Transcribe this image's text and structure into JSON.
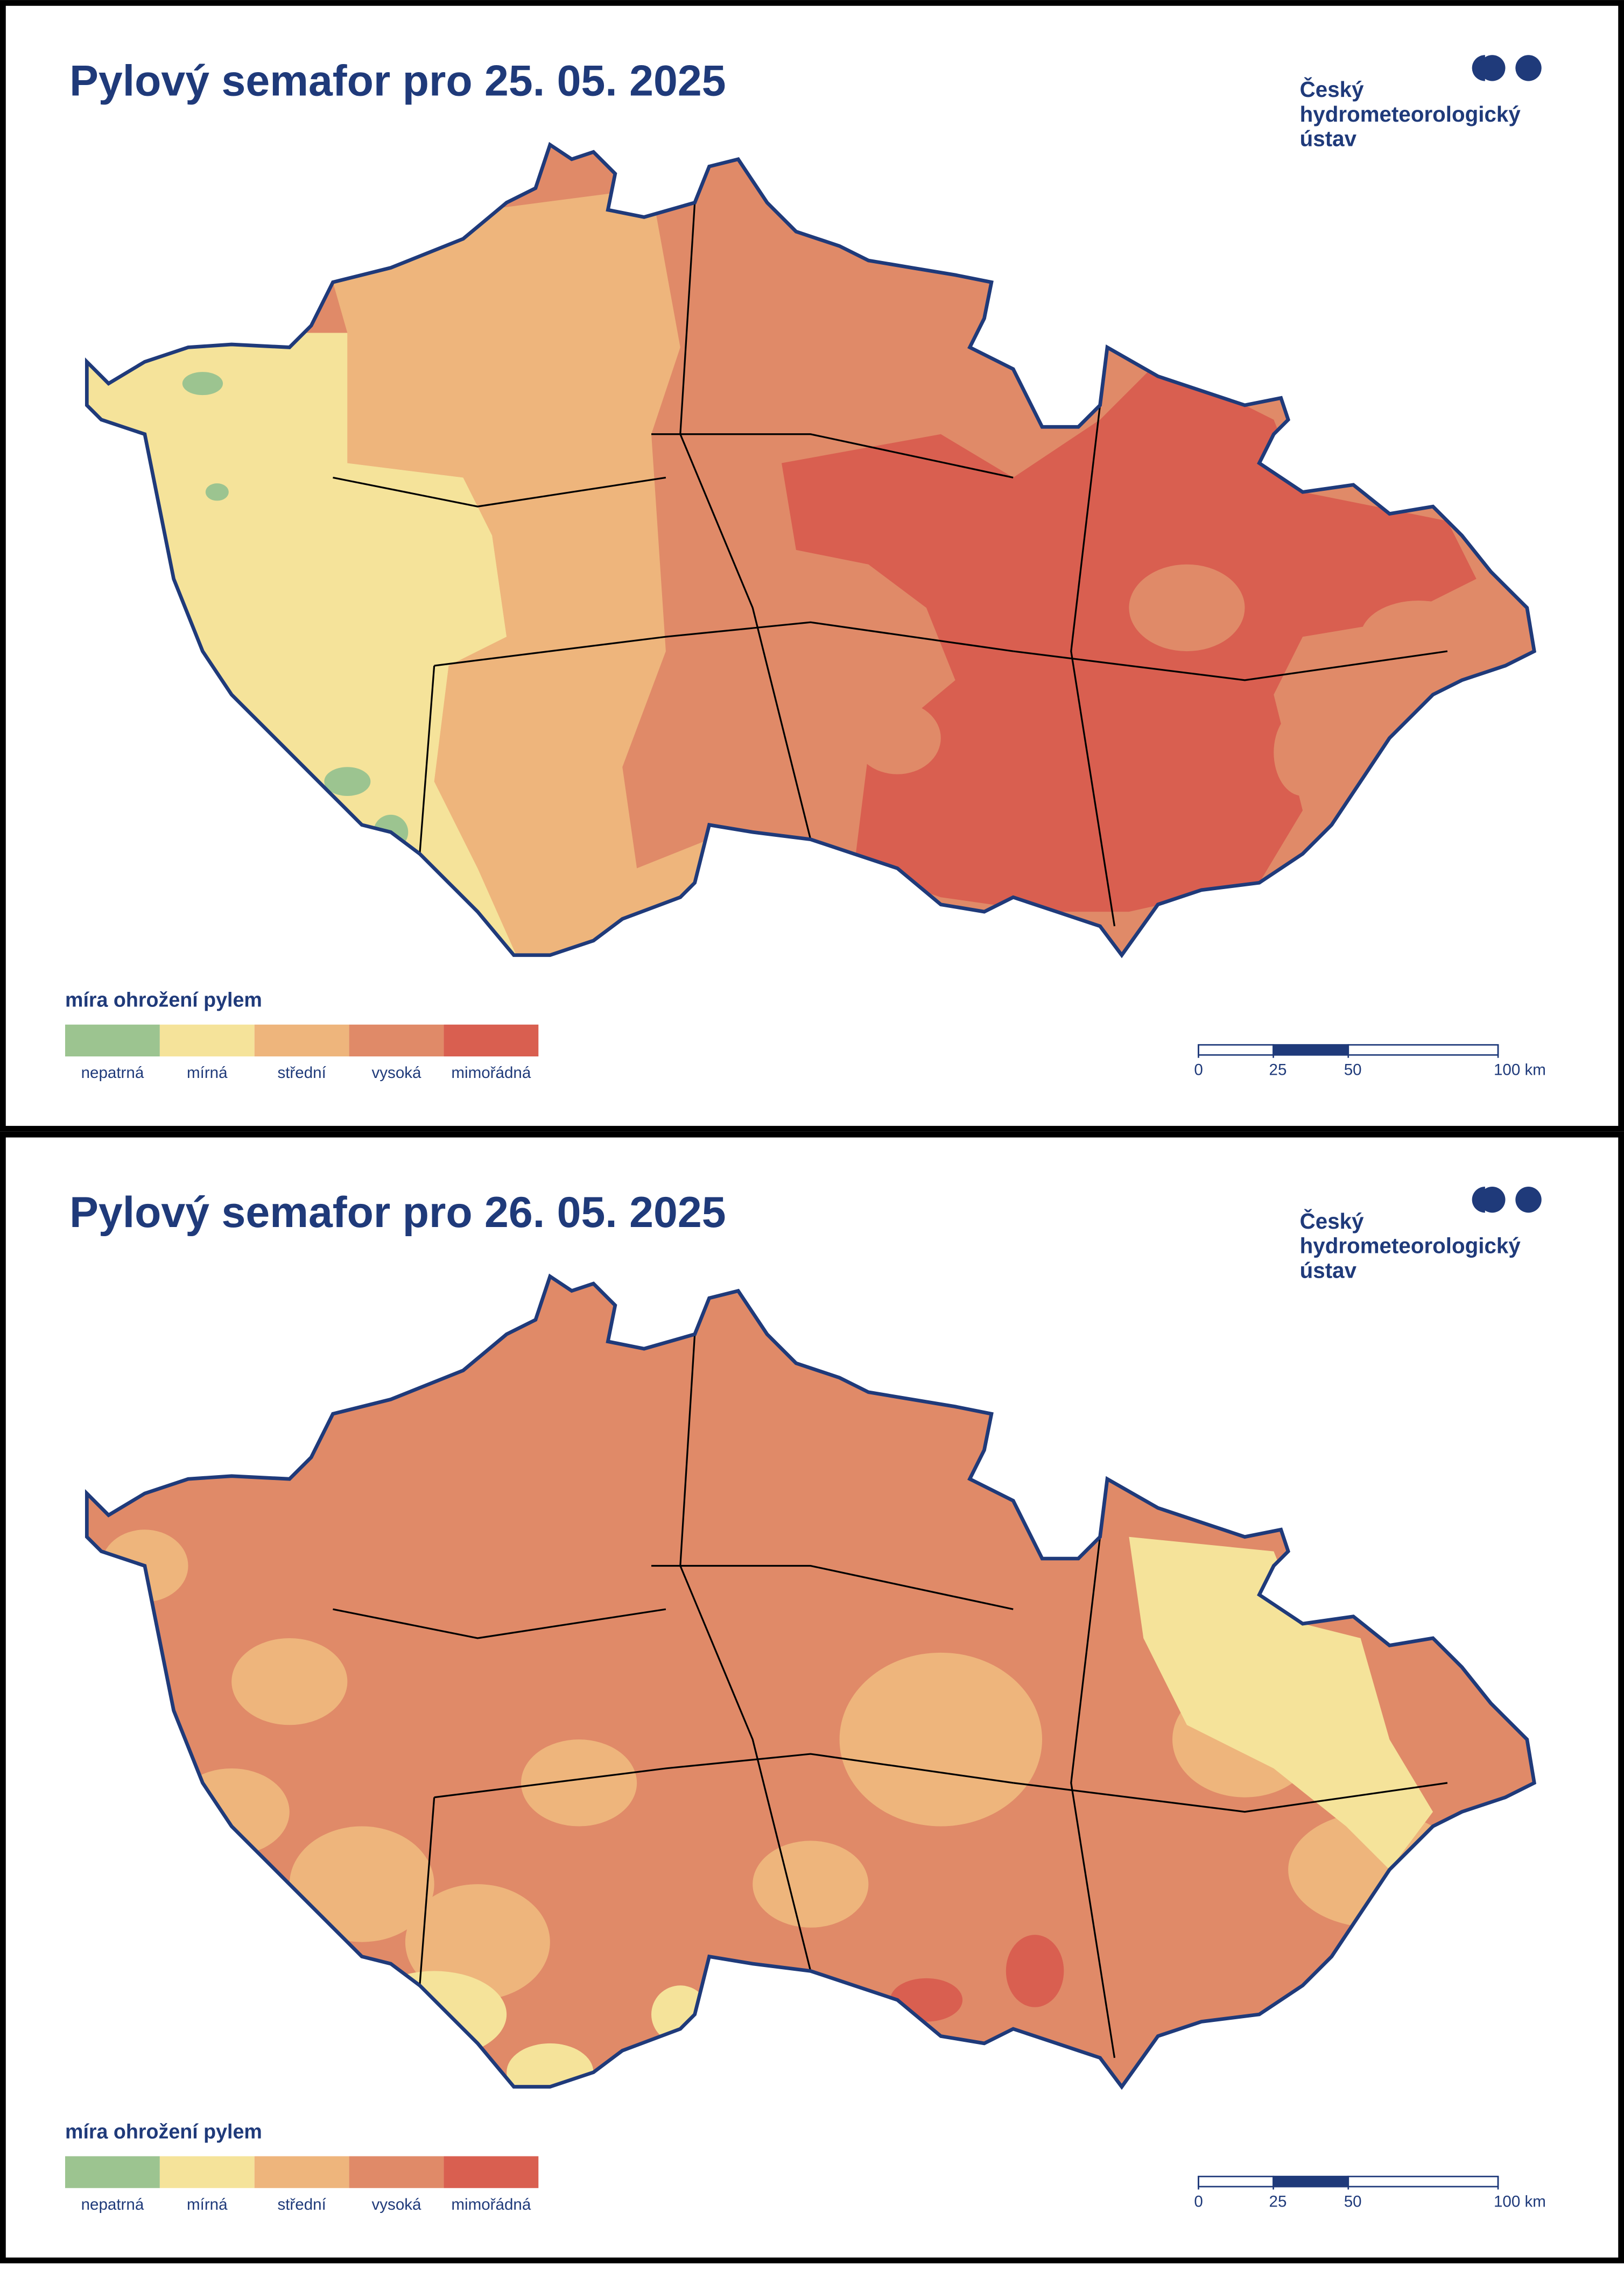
{
  "panels": [
    {
      "title": "Pylový semafor pro 25. 05. 2025",
      "logo": [
        "Český",
        "hydrometeorologický",
        "ústav"
      ],
      "legend": {
        "title": "míra ohrožení pylem",
        "items": [
          {
            "label": "nepatrná",
            "color": "#9cc490"
          },
          {
            "label": "mírná",
            "color": "#f5e39a"
          },
          {
            "label": "střední",
            "color": "#eeb57c"
          },
          {
            "label": "vysoká",
            "color": "#e08a68"
          },
          {
            "label": "mimořádná",
            "color": "#d95f50"
          }
        ]
      },
      "scale": {
        "ticks": [
          0,
          25,
          50,
          {
            "value": 100,
            "label": "100 km"
          }
        ]
      }
    },
    {
      "title": "Pylový semafor pro 26. 05. 2025",
      "logo": [
        "Český",
        "hydrometeorologický",
        "ústav"
      ],
      "legend": {
        "title": "míra ohrožení pylem",
        "items": [
          {
            "label": "nepatrná",
            "color": "#9cc490"
          },
          {
            "label": "mírná",
            "color": "#f5e39a"
          },
          {
            "label": "střední",
            "color": "#eeb57c"
          },
          {
            "label": "vysoká",
            "color": "#e08a68"
          },
          {
            "label": "mimořádná",
            "color": "#d95f50"
          }
        ]
      },
      "scale": {
        "ticks": [
          0,
          25,
          50,
          {
            "value": 100,
            "label": "100 km"
          }
        ]
      }
    }
  ]
}
